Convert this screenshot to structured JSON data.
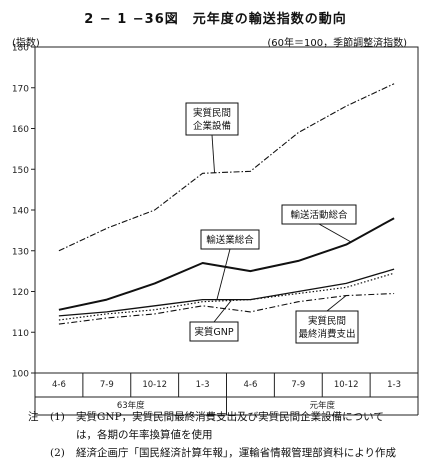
{
  "title": "2 − 1 −36図　元年度の輸送指数の動向",
  "chart_data": {
    "type": "line",
    "ylabel": "(指数)",
    "unit_note": "(60年＝100，季節調整済指数)",
    "ylim": [
      100,
      180
    ],
    "yticks": [
      100,
      110,
      120,
      130,
      140,
      150,
      160,
      170,
      180
    ],
    "categories": [
      "4-6",
      "7-9",
      "10-12",
      "1-3",
      "4-6",
      "7-9",
      "10-12",
      "1-3"
    ],
    "year_groups": [
      {
        "label": "63年度",
        "start": 0,
        "end": 3
      },
      {
        "label": "元年度",
        "start": 4,
        "end": 7
      }
    ],
    "series": [
      {
        "name": "実質民間\n企業設備",
        "style": "dashdot",
        "values": [
          130,
          135.5,
          140,
          149,
          149.5,
          159,
          165.5,
          171
        ]
      },
      {
        "name": "輸送活動総合",
        "style": "solid-bold",
        "values": [
          115.5,
          118,
          122,
          127,
          125,
          127.5,
          131.5,
          138
        ]
      },
      {
        "name": "輸送業総合",
        "style": "solid",
        "values": [
          114,
          115,
          116.5,
          118,
          118,
          120,
          122,
          125.5
        ]
      },
      {
        "name": "実質GNP",
        "style": "dotted",
        "values": [
          113,
          114.5,
          115.5,
          117.5,
          118,
          119.5,
          121,
          124.5
        ]
      },
      {
        "name": "実質民間\n最終消費支出",
        "style": "longdash",
        "values": [
          112,
          113.5,
          114.5,
          116.5,
          115,
          117.5,
          119,
          119.5
        ]
      }
    ]
  },
  "notes": [
    {
      "head": "注",
      "num": "(1)",
      "text": "実質GNP，実質民間最終消費支出及び実質民間企業設備について",
      "cont": "は，各期の年率換算値を使用"
    },
    {
      "head": "",
      "num": "(2)",
      "text": "経済企画庁「国民経済計算年報」，運輸省情報管理部資料により作成",
      "cont": ""
    }
  ]
}
